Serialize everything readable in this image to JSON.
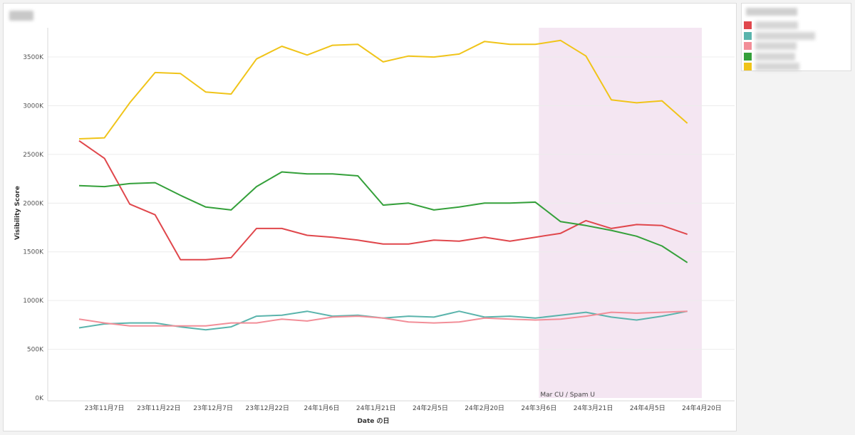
{
  "chart_data": {
    "type": "line",
    "title": "",
    "xlabel": "Date の日",
    "ylabel": "Visibility Score",
    "ylim": [
      0,
      3800000
    ],
    "yticks": [
      0,
      500000,
      1000000,
      1500000,
      2000000,
      2500000,
      3000000,
      3500000
    ],
    "ytick_labels": [
      "0K",
      "500K",
      "1000K",
      "1500K",
      "2000K",
      "2500K",
      "3000K",
      "3500K"
    ],
    "x": [
      "2023-10-31",
      "2023-11-07",
      "2023-11-14",
      "2023-11-21",
      "2023-11-28",
      "2023-12-05",
      "2023-12-12",
      "2023-12-19",
      "2023-12-26",
      "2024-01-02",
      "2024-01-09",
      "2024-01-16",
      "2024-01-23",
      "2024-01-30",
      "2024-02-06",
      "2024-02-13",
      "2024-02-20",
      "2024-02-27",
      "2024-03-05",
      "2024-03-12",
      "2024-03-19",
      "2024-03-26",
      "2024-04-02",
      "2024-04-09",
      "2024-04-16"
    ],
    "xticks": [
      "2023-11-07",
      "2023-11-22",
      "2023-12-07",
      "2023-12-22",
      "2024-01-06",
      "2024-01-21",
      "2024-02-05",
      "2024-02-20",
      "2024-03-06",
      "2024-03-21",
      "2024-04-05",
      "2024-04-20"
    ],
    "xtick_labels": [
      "23年11月7日",
      "23年11月22日",
      "23年12月7日",
      "23年12月22日",
      "24年1月6日",
      "24年1月21日",
      "24年2月5日",
      "24年2月20日",
      "24年3月6日",
      "24年3月21日",
      "24年4月5日",
      "24年4月20日"
    ],
    "grid": "horizontal",
    "legend_position": "right",
    "series": [
      {
        "color": "#e0474c",
        "values": [
          2640000,
          2460000,
          1990000,
          1880000,
          1420000,
          1420000,
          1440000,
          1740000,
          1740000,
          1670000,
          1650000,
          1620000,
          1580000,
          1580000,
          1620000,
          1610000,
          1650000,
          1610000,
          1650000,
          1690000,
          1820000,
          1740000,
          1780000,
          1770000,
          1680000
        ]
      },
      {
        "color": "#5ab4ac",
        "values": [
          720000,
          760000,
          770000,
          770000,
          730000,
          700000,
          730000,
          840000,
          850000,
          890000,
          840000,
          850000,
          820000,
          840000,
          830000,
          890000,
          830000,
          840000,
          820000,
          850000,
          880000,
          830000,
          800000,
          840000,
          890000
        ]
      },
      {
        "color": "#f28e98",
        "values": [
          810000,
          770000,
          740000,
          740000,
          740000,
          740000,
          770000,
          770000,
          810000,
          790000,
          830000,
          840000,
          820000,
          780000,
          770000,
          780000,
          820000,
          810000,
          800000,
          810000,
          840000,
          880000,
          870000,
          880000,
          890000
        ]
      },
      {
        "color": "#34a03a",
        "values": [
          2180000,
          2170000,
          2200000,
          2210000,
          2080000,
          1960000,
          1930000,
          2170000,
          2320000,
          2300000,
          2300000,
          2280000,
          1980000,
          2000000,
          1930000,
          1960000,
          2000000,
          2000000,
          2010000,
          1810000,
          1770000,
          1720000,
          1660000,
          1560000,
          1390000
        ]
      },
      {
        "color": "#f0c419",
        "values": [
          2660000,
          2670000,
          3030000,
          3340000,
          3330000,
          3140000,
          3120000,
          3480000,
          3610000,
          3520000,
          3620000,
          3630000,
          3450000,
          3510000,
          3500000,
          3530000,
          3660000,
          3630000,
          3630000,
          3670000,
          3510000,
          3060000,
          3030000,
          3050000,
          2820000
        ]
      }
    ],
    "annotations": [
      {
        "label": "Mar CU / Spam U",
        "x_start": "2024-03-06",
        "x_end": "2024-04-20",
        "color": "#f4e6f2"
      }
    ]
  },
  "legend": {
    "colors": [
      "#e0474c",
      "#5ab4ac",
      "#f28e98",
      "#34a03a",
      "#f0c419"
    ]
  }
}
